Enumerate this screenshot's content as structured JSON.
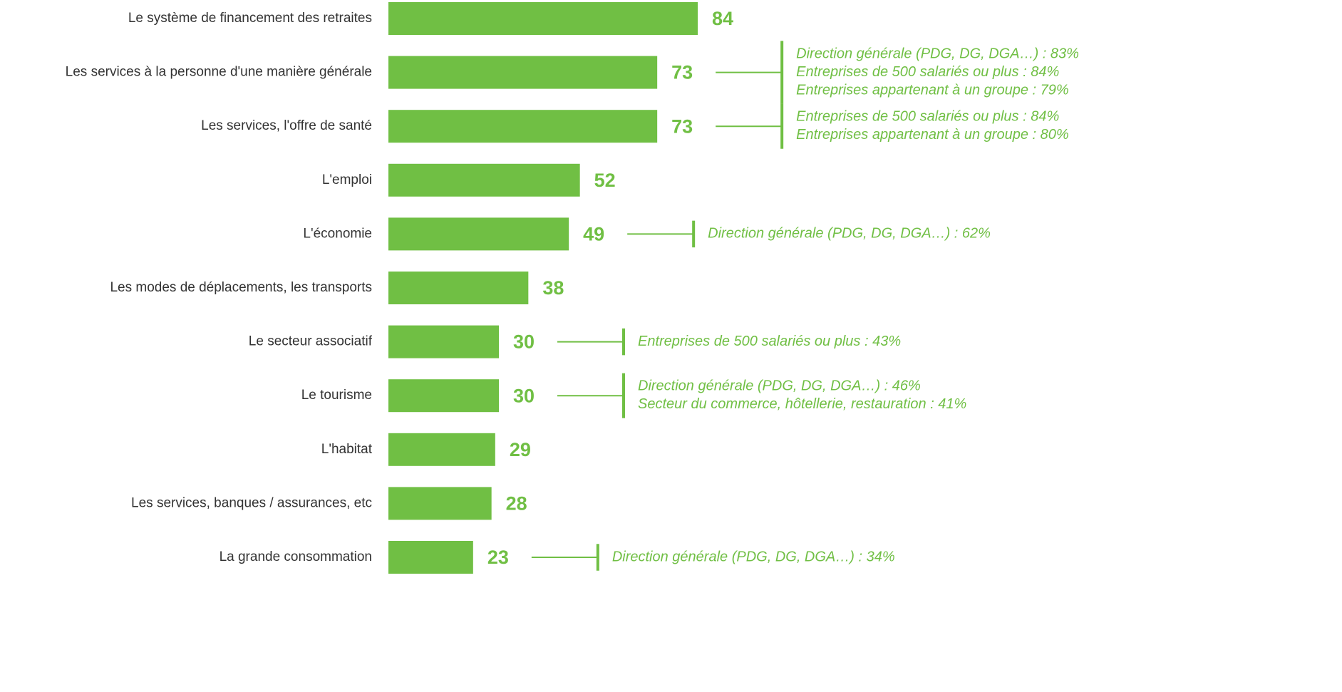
{
  "chart_data": {
    "type": "bar",
    "categories": [
      "Le système de financement des retraites",
      "Les services à la personne d'une manière générale",
      "Les services, l'offre de santé",
      "L'emploi",
      "L'économie",
      "Les modes de déplacements, les transports",
      "Le secteur associatif",
      "Le tourisme",
      "L'habitat",
      "Les services, banques / assurances, etc",
      "La grande consommation"
    ],
    "values": [
      84,
      73,
      73,
      52,
      49,
      38,
      30,
      30,
      29,
      28,
      23
    ],
    "color": "#70bf44",
    "annotations": [
      null,
      [
        "Direction générale (PDG, DG, DGA…) : 83%",
        "Entreprises de 500 salariés ou plus : 84%",
        "Entreprises appartenant à un groupe : 79%"
      ],
      [
        "Entreprises de 500 salariés ou plus : 84%",
        "Entreprises appartenant à un groupe : 80%"
      ],
      null,
      [
        "Direction générale (PDG, DG, DGA…) : 62%"
      ],
      null,
      [
        "Entreprises de 500 salariés ou plus : 43%"
      ],
      [
        "Direction générale (PDG, DG, DGA…) : 46%",
        "Secteur du commerce, hôtellerie, restauration : 41%"
      ],
      null,
      null,
      [
        "Direction générale (PDG, DG, DGA…) : 34%"
      ]
    ]
  }
}
